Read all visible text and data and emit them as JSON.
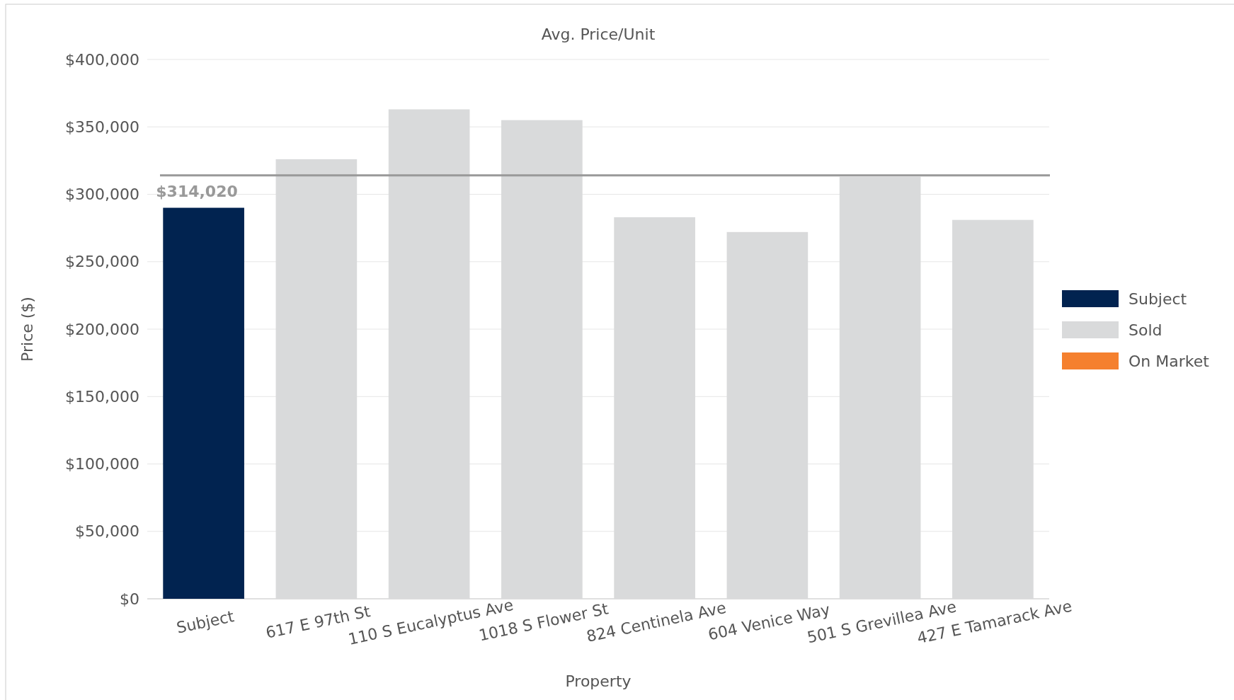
{
  "chart_data": {
    "type": "bar",
    "title": "Avg. Price/Unit",
    "xlabel": "Property",
    "ylabel": "Price ($)",
    "categories": [
      "Subject",
      "617 E 97th St",
      "110 S Eucalyptus Ave",
      "1018 S Flower St",
      "824 Centinela Ave",
      "604 Venice Way",
      "501 S Grevillea Ave",
      "427 E Tamarack Ave"
    ],
    "series": [
      {
        "name": "Subject",
        "color": "#012350",
        "values": [
          290000,
          null,
          null,
          null,
          null,
          null,
          null,
          null
        ]
      },
      {
        "name": "Sold",
        "color": "#d9dadb",
        "values": [
          null,
          326000,
          363000,
          355000,
          283000,
          272000,
          313000,
          281000
        ]
      },
      {
        "name": "On Market",
        "color": "#f5802e",
        "values": [
          null,
          null,
          null,
          null,
          null,
          null,
          null,
          null
        ]
      }
    ],
    "ylim": [
      0,
      400000
    ],
    "yticks": [
      {
        "value": 0,
        "label": "$0"
      },
      {
        "value": 50000,
        "label": "$50,000"
      },
      {
        "value": 100000,
        "label": "$100,000"
      },
      {
        "value": 150000,
        "label": "$150,000"
      },
      {
        "value": 200000,
        "label": "$200,000"
      },
      {
        "value": 250000,
        "label": "$250,000"
      },
      {
        "value": 300000,
        "label": "$300,000"
      },
      {
        "value": 350000,
        "label": "$350,000"
      },
      {
        "value": 400000,
        "label": "$400,000"
      }
    ],
    "grid": "y",
    "legend": "right",
    "ref_lines": [
      {
        "axis": "y",
        "value": 314020,
        "label": "$314,020",
        "color": "#999999"
      }
    ]
  }
}
